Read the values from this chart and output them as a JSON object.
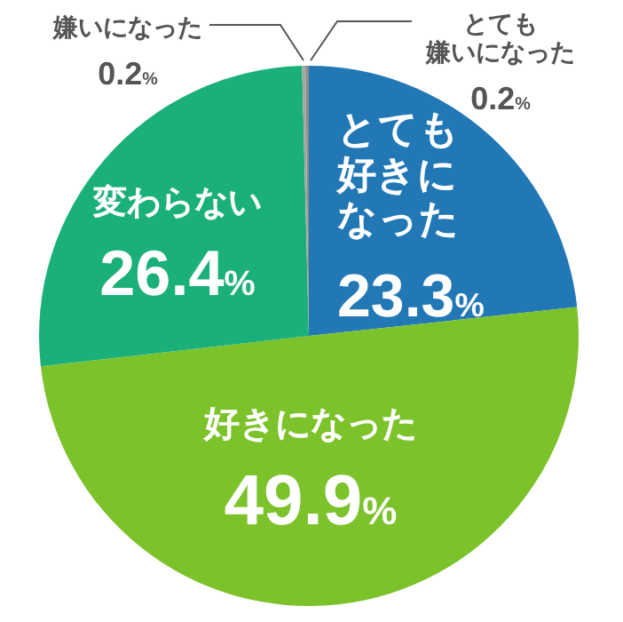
{
  "chart_data": {
    "type": "pie",
    "categories": [
      "とても好きになった",
      "好きになった",
      "変わらない",
      "嫌いになった",
      "とても嫌いになった"
    ],
    "values": [
      23.3,
      49.9,
      26.4,
      0.2,
      0.2
    ],
    "colors": [
      "#2278b5",
      "#7cc22b",
      "#1bb07a",
      "#a6a6a6",
      "#8c8c8c"
    ],
    "value_labels": [
      "23.3%",
      "49.9%",
      "26.4%",
      "0.2%",
      "0.2%"
    ]
  }
}
